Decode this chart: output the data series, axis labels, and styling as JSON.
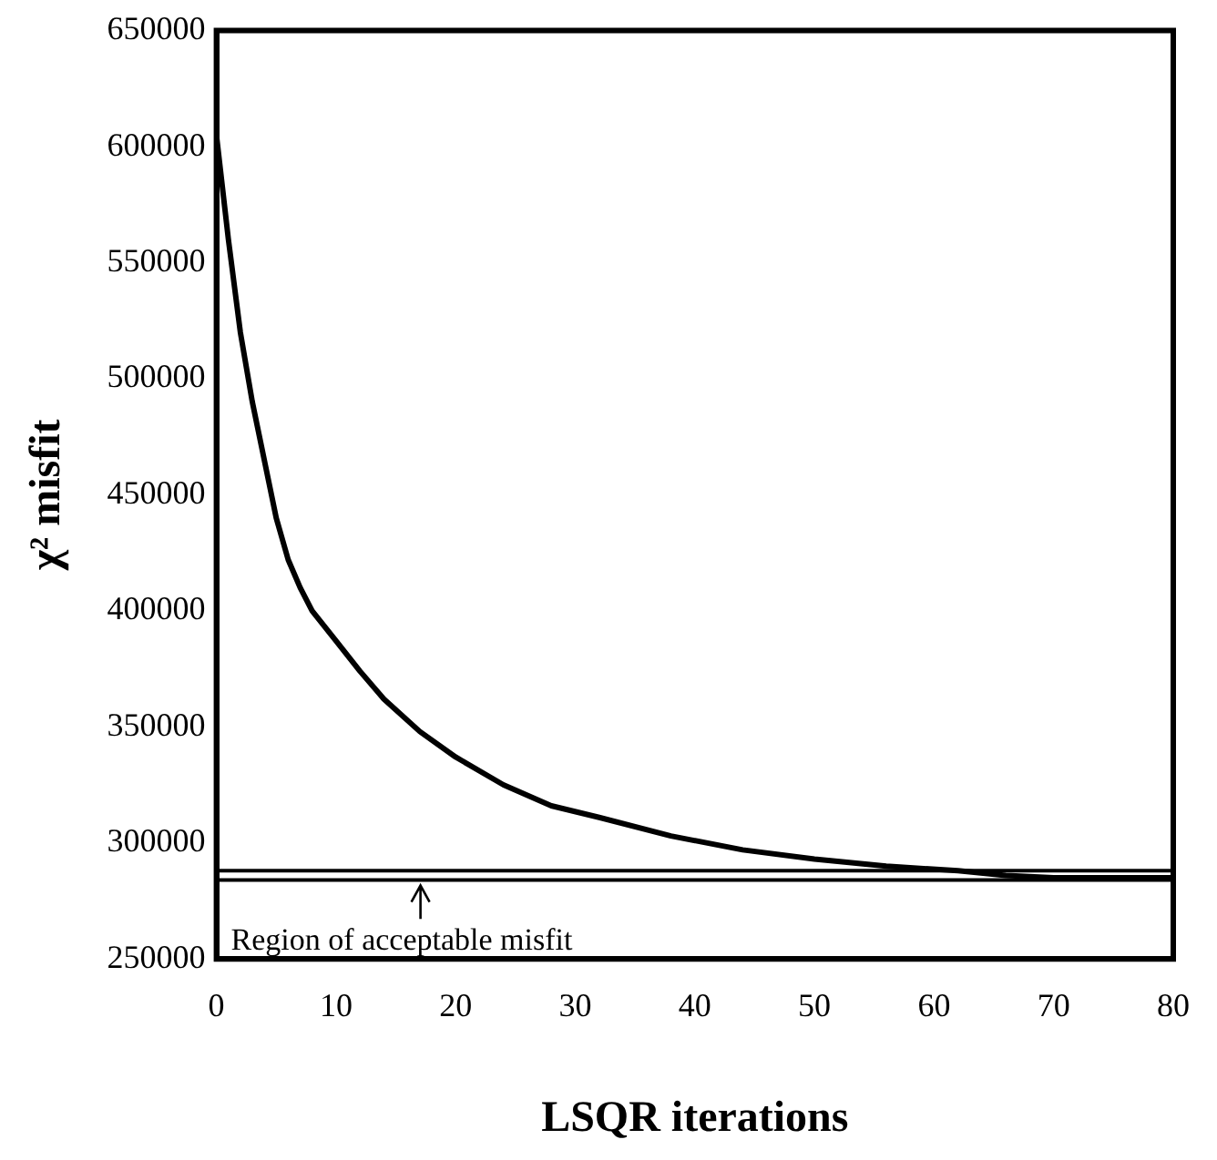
{
  "chart_data": {
    "type": "line",
    "xlabel": "LSQR iterations",
    "ylabel": "χ² misfit",
    "x": [
      0,
      1,
      2,
      3,
      4,
      5,
      6,
      7,
      8,
      10,
      12,
      14,
      17,
      20,
      24,
      28,
      32,
      38,
      44,
      50,
      56,
      62,
      66,
      70,
      75,
      80
    ],
    "series": [
      {
        "color": "#000000",
        "values": [
          605000,
          560000,
          520000,
          490000,
          465000,
          440000,
          422000,
          410000,
          400000,
          387000,
          374000,
          362000,
          348000,
          337000,
          325000,
          316000,
          311000,
          303000,
          297000,
          293000,
          290000,
          288000,
          286000,
          285000,
          285000,
          285000
        ]
      }
    ],
    "xlim": [
      0,
      80
    ],
    "xticks": [
      0,
      10,
      20,
      30,
      40,
      50,
      60,
      70,
      80
    ],
    "ylim": [
      250000,
      650000
    ],
    "yticks": [
      250000,
      300000,
      350000,
      400000,
      450000,
      500000,
      550000,
      600000,
      650000
    ],
    "ref_lines": [
      {
        "axis": "y",
        "value": 288000
      },
      {
        "axis": "y",
        "value": 284000,
        "label": "Region of acceptable misfit"
      }
    ],
    "grid": false,
    "marker": "none",
    "line_style": "solid"
  }
}
